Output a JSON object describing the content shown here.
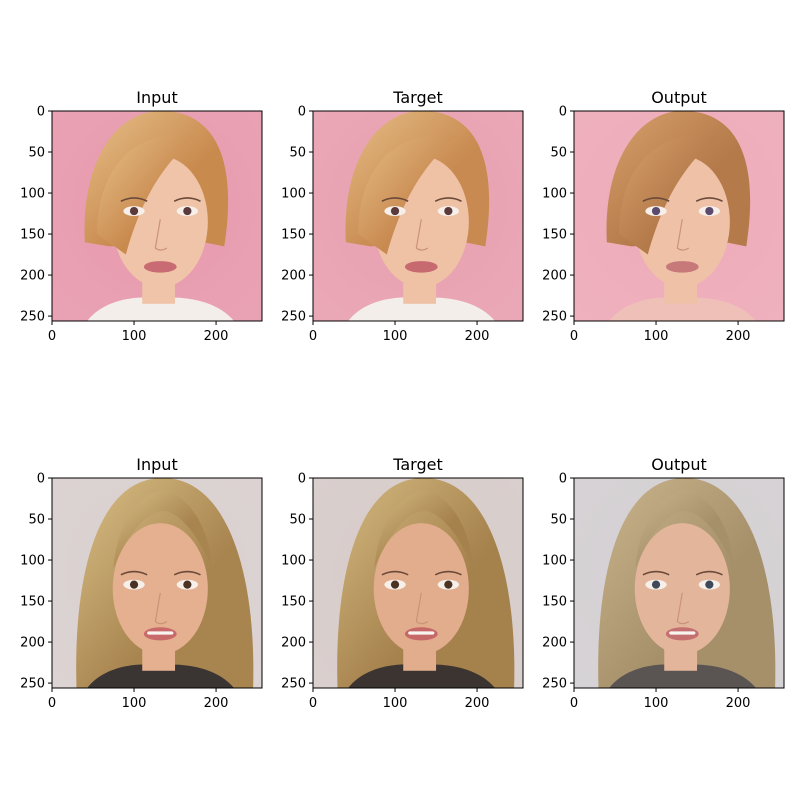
{
  "chart_data": {
    "type": "image-grid",
    "rows": 2,
    "cols": 3,
    "image_size": [
      256,
      256
    ],
    "xlim": [
      0,
      256
    ],
    "ylim": [
      256,
      0
    ],
    "xticks": [
      0,
      100,
      200
    ],
    "yticks": [
      0,
      50,
      100,
      150,
      200,
      250
    ],
    "panels": [
      {
        "title": "Input",
        "image": {
          "background": "#e79aad",
          "hair": "#c98a4e",
          "hair_highlight": "#e6c08a",
          "skin": "#f0c4a8",
          "lips": "#c96b72",
          "eyes": "#5b3a3c",
          "clothing": "#f3eee9"
        }
      },
      {
        "title": "Target",
        "image": {
          "background": "#e8a0b0",
          "hair": "#c88a50",
          "hair_highlight": "#e5bd86",
          "skin": "#efc1a5",
          "lips": "#c66a70",
          "eyes": "#5b3a3c",
          "clothing": "#f3eee9"
        }
      },
      {
        "title": "Output",
        "image": {
          "background": "#eeaab8",
          "hair": "#b47a4a",
          "hair_highlight": "#d6a06a",
          "skin": "#efc2a8",
          "lips": "#c7797a",
          "eyes": "#5a4b6e",
          "clothing": "#eec0b8"
        }
      },
      {
        "title": "Input",
        "image": {
          "background": "#d9cfcf",
          "hair": "#a8844f",
          "hair_highlight": "#d8bf86",
          "skin": "#e4b08f",
          "lips": "#c86a6a",
          "eyes": "#4a3322",
          "clothing": "#3a3432"
        }
      },
      {
        "title": "Target",
        "image": {
          "background": "#d6cbc9",
          "hair": "#a5814c",
          "hair_highlight": "#d4b981",
          "skin": "#e2ad8c",
          "lips": "#c66868",
          "eyes": "#4a3322",
          "clothing": "#3b3431"
        }
      },
      {
        "title": "Output",
        "image": {
          "background": "#d3cfd2",
          "hair": "#a6906a",
          "hair_highlight": "#c9b48c",
          "skin": "#e3b59a",
          "lips": "#c47070",
          "eyes": "#3e4a5a",
          "clothing": "#5a5552"
        }
      }
    ]
  }
}
